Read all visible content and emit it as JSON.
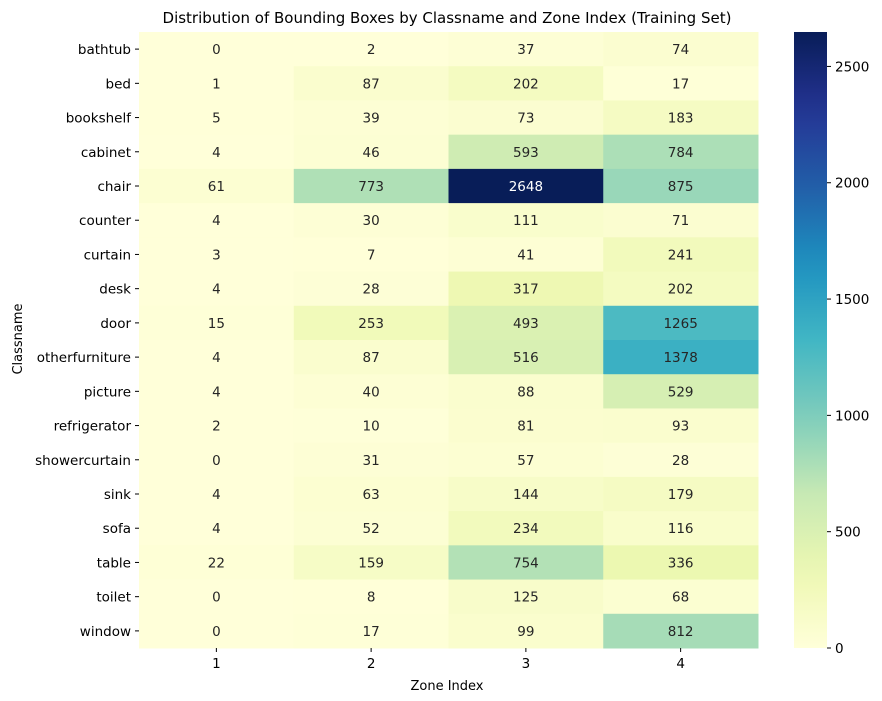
{
  "chart_data": {
    "type": "heatmap",
    "title": "Distribution of Bounding Boxes by Classname and Zone Index (Training Set)",
    "xlabel": "Zone Index",
    "ylabel": "Classname",
    "x_categories": [
      "1",
      "2",
      "3",
      "4"
    ],
    "y_categories": [
      "bathtub",
      "bed",
      "bookshelf",
      "cabinet",
      "chair",
      "counter",
      "curtain",
      "desk",
      "door",
      "otherfurniture",
      "picture",
      "refrigerator",
      "showercurtain",
      "sink",
      "sofa",
      "table",
      "toilet",
      "window"
    ],
    "values": [
      [
        0,
        2,
        37,
        74
      ],
      [
        1,
        87,
        202,
        17
      ],
      [
        5,
        39,
        73,
        183
      ],
      [
        4,
        46,
        593,
        784
      ],
      [
        61,
        773,
        2648,
        875
      ],
      [
        4,
        30,
        111,
        71
      ],
      [
        3,
        7,
        41,
        241
      ],
      [
        4,
        28,
        317,
        202
      ],
      [
        15,
        253,
        493,
        1265
      ],
      [
        4,
        87,
        516,
        1378
      ],
      [
        4,
        40,
        88,
        529
      ],
      [
        2,
        10,
        81,
        93
      ],
      [
        0,
        31,
        57,
        28
      ],
      [
        4,
        63,
        144,
        179
      ],
      [
        4,
        52,
        234,
        116
      ],
      [
        22,
        159,
        754,
        336
      ],
      [
        0,
        8,
        125,
        68
      ],
      [
        0,
        17,
        99,
        812
      ]
    ],
    "colormap": "YlGnBu",
    "vmin": 0,
    "vmax": 2648,
    "colorbar_ticks": [
      0,
      500,
      1000,
      1500,
      2000,
      2500
    ],
    "grid": false
  }
}
